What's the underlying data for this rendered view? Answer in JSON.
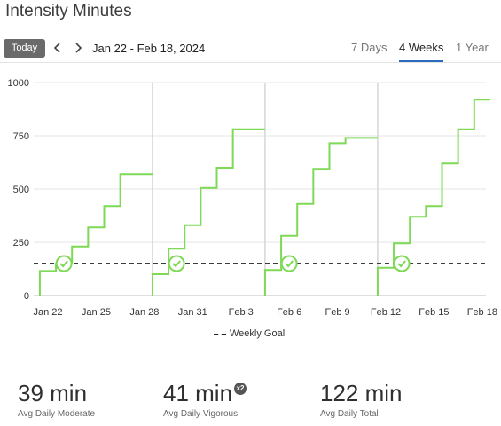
{
  "page": {
    "title": "Intensity Minutes"
  },
  "toolbar": {
    "today_label": "Today",
    "date_range": "Jan 22 - Feb 18, 2024",
    "tabs": [
      {
        "label": "7 Days",
        "active": false
      },
      {
        "label": "4 Weeks",
        "active": true
      },
      {
        "label": "1 Year",
        "active": false
      }
    ]
  },
  "icons": {
    "prev": "chevron-left-icon",
    "next": "chevron-right-icon",
    "goal_met": "checkmark-icon"
  },
  "colors": {
    "series": "#7ed957",
    "goal": "#222222",
    "tab_accent": "#2a6bbd",
    "today_button": "#6a6a6a"
  },
  "chart_data": {
    "type": "line",
    "title": "",
    "xlabel": "",
    "ylabel": "",
    "ylim": [
      0,
      1000
    ],
    "yticks": [
      0,
      250,
      500,
      750,
      1000
    ],
    "x_tick_labels": [
      "Jan 22",
      "Jan 25",
      "Jan 28",
      "Jan 31",
      "Feb 3",
      "Feb 6",
      "Feb 9",
      "Feb 12",
      "Feb 15",
      "Feb 18"
    ],
    "grid": true,
    "legend": {
      "position": "bottom",
      "entries": [
        "Weekly Goal"
      ]
    },
    "weekly_goal": 150,
    "days": [
      "Jan 22",
      "Jan 23",
      "Jan 24",
      "Jan 25",
      "Jan 26",
      "Jan 27",
      "Jan 28",
      "Jan 29",
      "Jan 30",
      "Jan 31",
      "Feb 1",
      "Feb 2",
      "Feb 3",
      "Feb 4",
      "Feb 5",
      "Feb 6",
      "Feb 7",
      "Feb 8",
      "Feb 9",
      "Feb 10",
      "Feb 11",
      "Feb 12",
      "Feb 13",
      "Feb 14",
      "Feb 15",
      "Feb 16",
      "Feb 17",
      "Feb 18"
    ],
    "series": [
      {
        "values": [
          115,
          150,
          230,
          320,
          420,
          570,
          570,
          100,
          220,
          330,
          505,
          600,
          780,
          780,
          120,
          280,
          430,
          595,
          715,
          740,
          740,
          130,
          245,
          370,
          420,
          620,
          780,
          920
        ],
        "goal_met_day_index": [
          1,
          8,
          15,
          22
        ]
      }
    ]
  },
  "summary": [
    {
      "value": "39 min",
      "label": "Avg Daily Moderate",
      "badge": ""
    },
    {
      "value": "41 min",
      "label": "Avg Daily Vigorous",
      "badge": "x2"
    },
    {
      "value": "122 min",
      "label": "Avg Daily Total",
      "badge": ""
    }
  ]
}
